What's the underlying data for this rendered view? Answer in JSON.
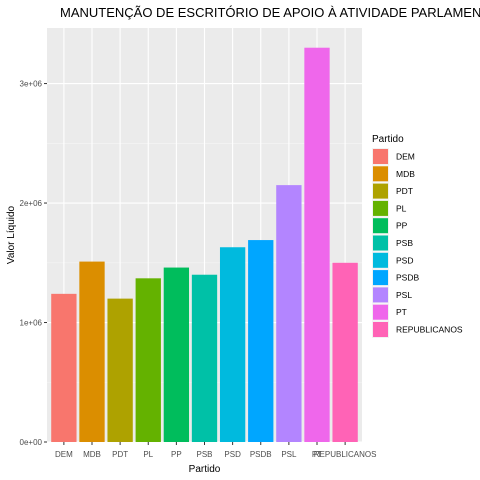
{
  "chart_data": {
    "type": "bar",
    "title": "MANUTENÇÃO DE ESCRITÓRIO DE APOIO À ATIVIDADE PARLAMENTAR",
    "xlabel": "Partido",
    "ylabel": "Valor Líquido",
    "categories": [
      "DEM",
      "MDB",
      "PDT",
      "PL",
      "PP",
      "PSB",
      "PSD",
      "PSDB",
      "PSL",
      "PT",
      "REPUBLICANOS"
    ],
    "values": [
      1240000,
      1510000,
      1200000,
      1370000,
      1460000,
      1400000,
      1630000,
      1690000,
      2150000,
      3300000,
      1500000
    ],
    "colors": [
      "#F8766D",
      "#DB8E00",
      "#AEA200",
      "#64B200",
      "#00BD5C",
      "#00C1A7",
      "#00BADE",
      "#00A6FF",
      "#B385FF",
      "#EF67EB",
      "#FF63B6"
    ],
    "yticks": [
      0,
      1000000,
      2000000,
      3000000
    ],
    "ytick_labels": [
      "0e+00",
      "1e+06",
      "2e+06",
      "3e+06"
    ],
    "ylim": [
      0,
      3465000
    ],
    "grid": true,
    "legend_title": "Partido",
    "legend_position": "right"
  }
}
